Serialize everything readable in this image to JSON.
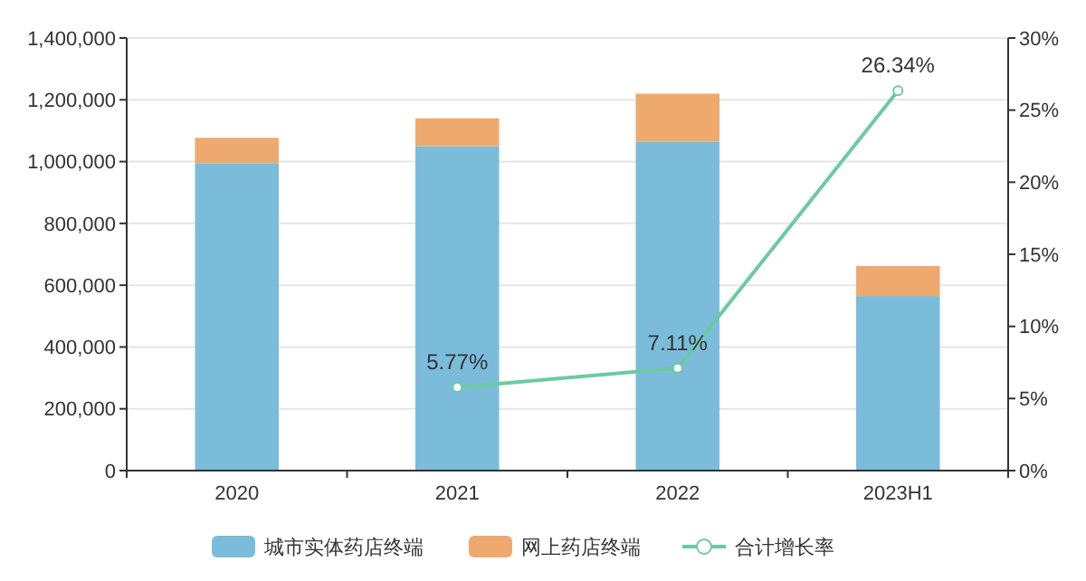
{
  "chart_data": {
    "type": "bar",
    "stacked": true,
    "categories": [
      "2020",
      "2021",
      "2022",
      "2023H1"
    ],
    "series": [
      {
        "name": "城市实体药店终端",
        "color": "#7bbcdb",
        "values": [
          995000,
          1050000,
          1065000,
          565000
        ]
      },
      {
        "name": "网上药店终端",
        "color": "#eeaa6e",
        "values": [
          82000,
          90000,
          155000,
          97000
        ]
      },
      {
        "name": "合计增长率",
        "type": "line",
        "axis": "y2",
        "color": "#6dcaa0",
        "marker": "circle",
        "values": [
          null,
          5.77,
          7.11,
          26.34
        ],
        "value_labels": [
          null,
          "5.77%",
          "7.11%",
          "26.34%"
        ]
      }
    ],
    "ylim": [
      0,
      1400000
    ],
    "yticks": [
      {
        "value": 0,
        "label": "0"
      },
      {
        "value": 200000,
        "label": "200,000"
      },
      {
        "value": 400000,
        "label": "400,000"
      },
      {
        "value": 600000,
        "label": "600,000"
      },
      {
        "value": 800000,
        "label": "800,000"
      },
      {
        "value": 1000000,
        "label": "1,000,000"
      },
      {
        "value": 1200000,
        "label": "1,200,000"
      },
      {
        "value": 1400000,
        "label": "1,400,000"
      }
    ],
    "y2lim": [
      0,
      30
    ],
    "y2ticks": [
      {
        "value": 0,
        "label": "0%"
      },
      {
        "value": 5,
        "label": "5%"
      },
      {
        "value": 10,
        "label": "10%"
      },
      {
        "value": 15,
        "label": "15%"
      },
      {
        "value": 20,
        "label": "20%"
      },
      {
        "value": 25,
        "label": "25%"
      },
      {
        "value": 30,
        "label": "30%"
      }
    ],
    "grid": "y",
    "legend": "bottom"
  }
}
